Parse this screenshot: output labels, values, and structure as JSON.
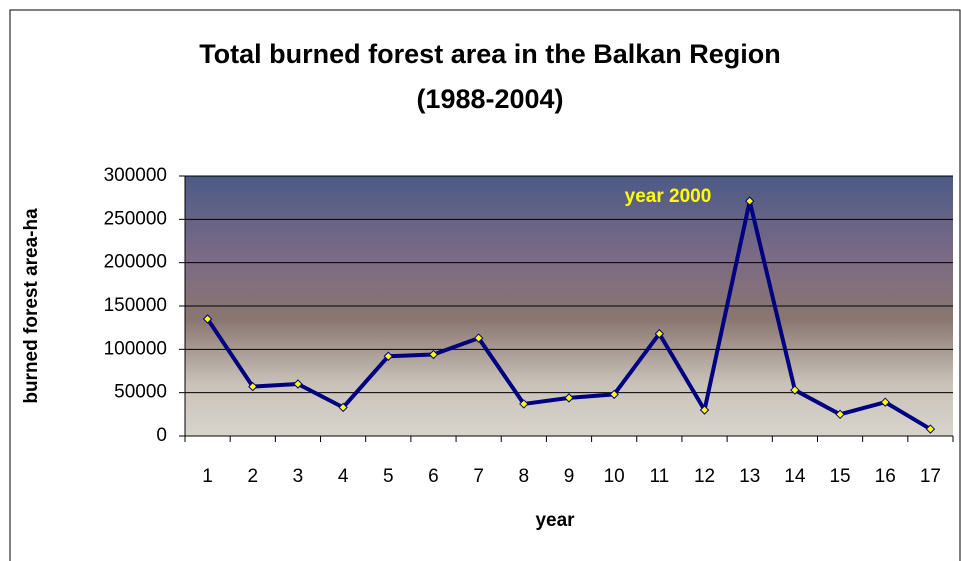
{
  "chart_data": {
    "type": "line",
    "title": "Total burned forest area in the Balkan Region",
    "subtitle": "(1988-2004)",
    "x_label": "year",
    "y_label": "burned forest area-ha",
    "annotation": "year 2000",
    "categories": [
      "1",
      "2",
      "3",
      "4",
      "5",
      "6",
      "7",
      "8",
      "9",
      "10",
      "11",
      "12",
      "13",
      "14",
      "15",
      "16",
      "17"
    ],
    "values": [
      135000,
      57000,
      60000,
      33000,
      92000,
      94000,
      113000,
      37000,
      44000,
      48000,
      118000,
      30000,
      271000,
      53000,
      25000,
      39000,
      8000
    ],
    "color": "#000080",
    "marker_color": "#ffff00",
    "ylim": [
      0,
      300000
    ],
    "yticks": [
      0,
      50000,
      100000,
      150000,
      200000,
      250000,
      300000
    ],
    "grid": true
  }
}
